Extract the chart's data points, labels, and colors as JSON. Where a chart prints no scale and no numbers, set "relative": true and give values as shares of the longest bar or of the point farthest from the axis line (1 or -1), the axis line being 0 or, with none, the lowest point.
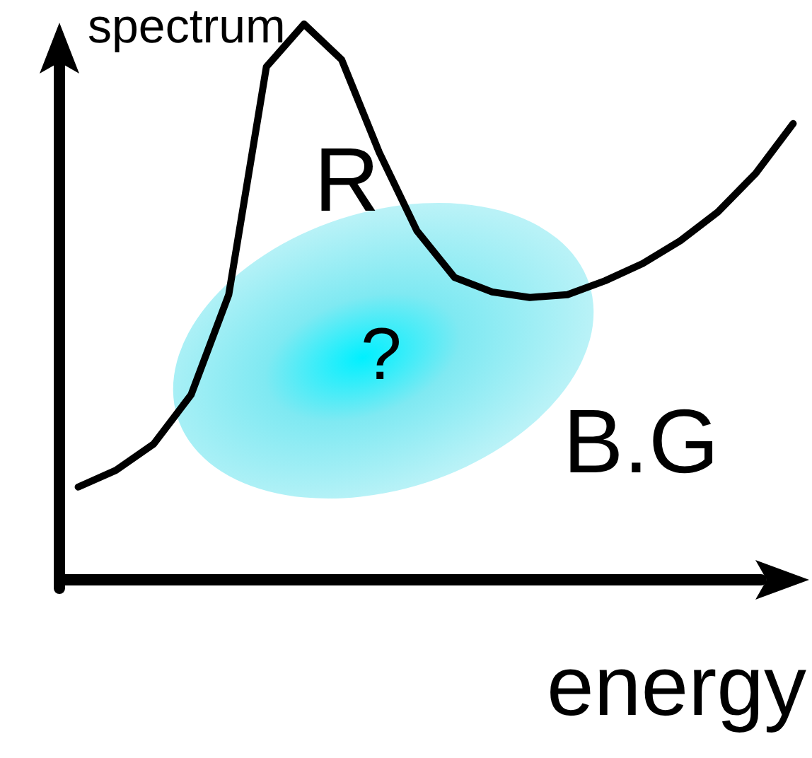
{
  "chart_data": {
    "type": "line",
    "relative": true,
    "ylabel": "spectrum",
    "xlabel": "energy",
    "categories": [
      null,
      null,
      null,
      null,
      null,
      null,
      null,
      null,
      null,
      null,
      null,
      null,
      null,
      null,
      null,
      null,
      null,
      null,
      null,
      null
    ],
    "series": [
      {
        "color": "#000000",
        "values": [
          0.167,
          0.197,
          0.244,
          0.333,
          0.513,
          0.923,
          1.0,
          0.936,
          0.769,
          0.628,
          0.544,
          0.518,
          0.508,
          0.513,
          0.538,
          0.569,
          0.61,
          0.662,
          0.731,
          0.821
        ]
      }
    ],
    "annotations": [
      "R",
      "?",
      "B.G"
    ],
    "marker": "none",
    "line_style": "solid",
    "grid": false
  }
}
